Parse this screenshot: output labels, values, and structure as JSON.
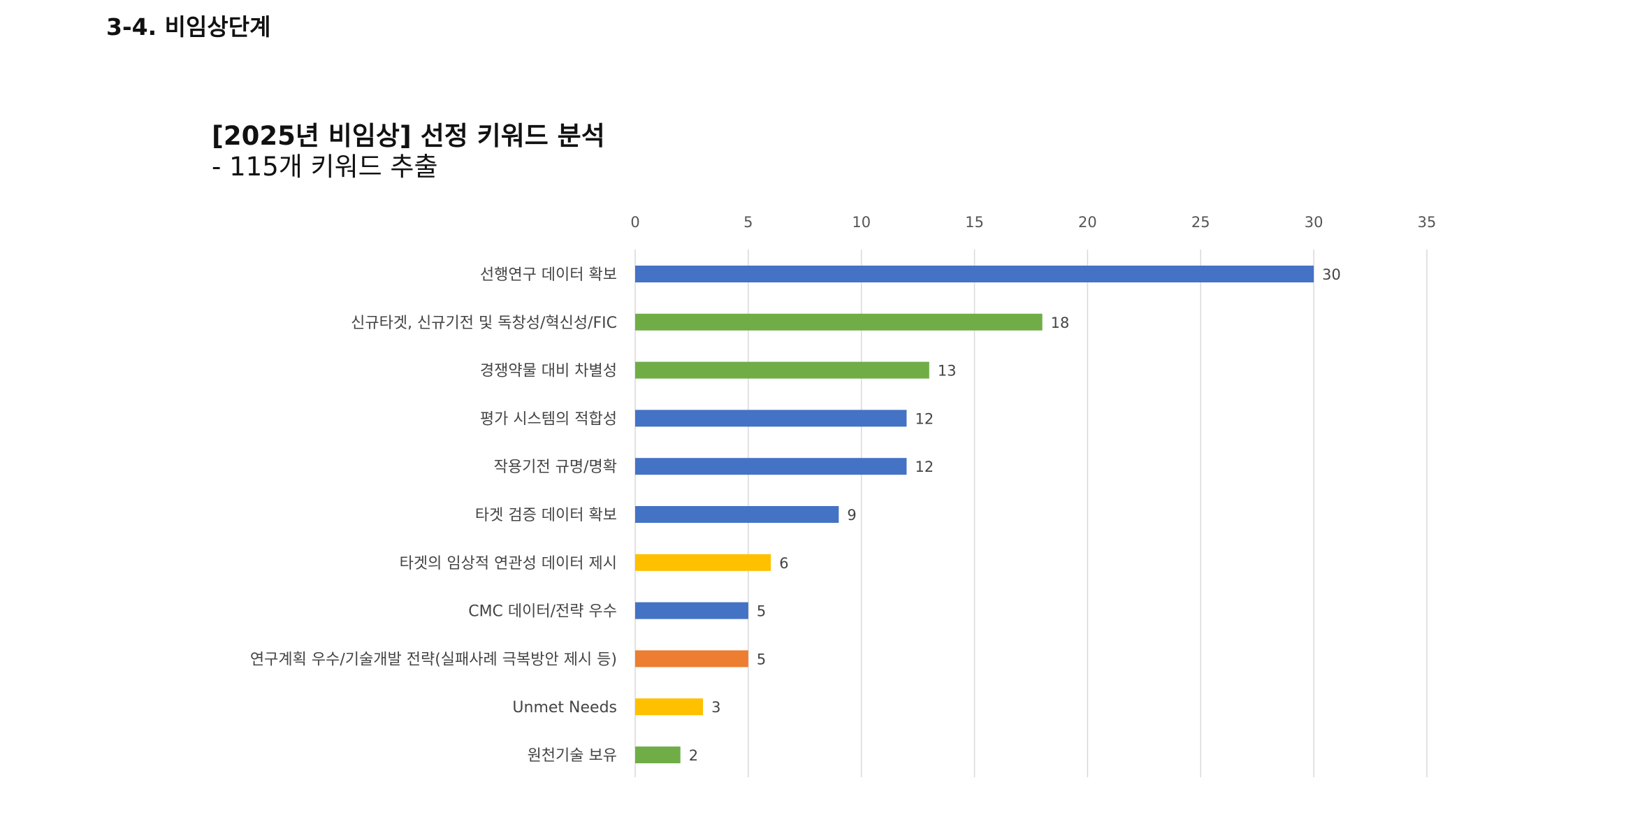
{
  "page": {
    "section_heading": "3-4.  비임상단계"
  },
  "chart_data": {
    "type": "bar",
    "orientation": "horizontal",
    "title": "[2025년 비임상] 선정 키워드 분석",
    "subtitle": "- 115개 키워드 추출",
    "xlabel": "",
    "ylabel": "",
    "xlim": [
      0,
      35
    ],
    "ticks": [
      0,
      5,
      10,
      15,
      20,
      25,
      30,
      35
    ],
    "tick_position": "top",
    "grid": "vertical",
    "legend": "none",
    "categories": [
      "선행연구 데이터 확보",
      "신규타겟, 신규기전 및 독창성/혁신성/FIC",
      "경쟁약물 대비 차별성",
      "평가 시스템의 적합성",
      "작용기전 규명/명확",
      "타겟 검증 데이터 확보",
      "타겟의 임상적 연관성 데이터 제시",
      "CMC 데이터/전략 우수",
      "연구계획 우수/기술개발 전략(실패사례 극복방안 제시 등)",
      "Unmet Needs",
      "원천기술 보유"
    ],
    "values": [
      30,
      18,
      13,
      12,
      12,
      9,
      6,
      5,
      5,
      3,
      2
    ],
    "bar_colors": [
      "#4472C4",
      "#70AD47",
      "#70AD47",
      "#4472C4",
      "#4472C4",
      "#4472C4",
      "#FFC000",
      "#4472C4",
      "#ED7D31",
      "#FFC000",
      "#70AD47"
    ],
    "colors": {
      "grid": "#D9D9D9",
      "tick_text": "#555555",
      "label_text": "#444444"
    }
  }
}
